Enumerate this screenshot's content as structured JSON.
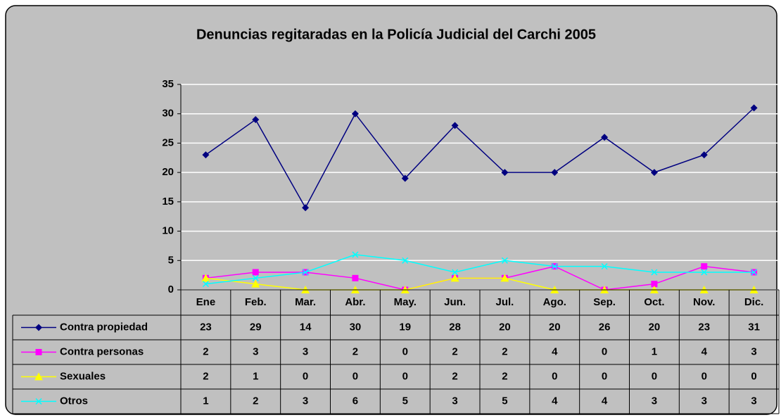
{
  "chart_data": {
    "type": "line",
    "title": "Denuncias regitaradas en la Policía Judicial del Carchi 2005",
    "categories": [
      "Ene",
      "Feb.",
      "Mar.",
      "Abr.",
      "May.",
      "Jun.",
      "Jul.",
      "Ago.",
      "Sep.",
      "Oct.",
      "Nov.",
      "Dic."
    ],
    "series": [
      {
        "name": "Contra propiedad",
        "color": "#000080",
        "marker": "diamond",
        "values": [
          23,
          29,
          14,
          30,
          19,
          28,
          20,
          20,
          26,
          20,
          23,
          31
        ]
      },
      {
        "name": "Contra personas",
        "color": "#ff00ff",
        "marker": "square",
        "values": [
          2,
          3,
          3,
          2,
          0,
          2,
          2,
          4,
          0,
          1,
          4,
          3
        ]
      },
      {
        "name": "Sexuales",
        "color": "#ffff00",
        "marker": "triangle",
        "values": [
          2,
          1,
          0,
          0,
          0,
          2,
          2,
          0,
          0,
          0,
          0,
          0
        ]
      },
      {
        "name": "Otros",
        "color": "#00ffff",
        "marker": "x",
        "values": [
          1,
          2,
          3,
          6,
          5,
          3,
          5,
          4,
          4,
          3,
          3,
          3
        ]
      }
    ],
    "ylim": [
      0,
      35
    ],
    "yticks": [
      0,
      5,
      10,
      15,
      20,
      25,
      30,
      35
    ],
    "grid": true,
    "data_table": true
  }
}
